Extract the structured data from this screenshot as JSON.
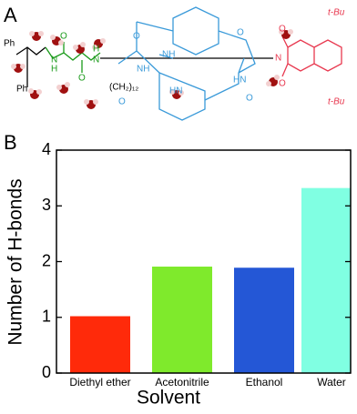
{
  "panels": {
    "a": "A",
    "b": "B"
  },
  "structure": {
    "labels": [
      "Ph",
      "Ph",
      "H",
      "N",
      "O",
      "O",
      "N",
      "H",
      "(CH₂)₁₂",
      "O",
      "NH",
      "HN",
      "O",
      "O",
      "NH",
      "HN",
      "O",
      "N",
      "O",
      "O",
      "t-Bu",
      "t-Bu"
    ]
  },
  "chart_data": {
    "type": "bar",
    "categories": [
      "Diethyl ether",
      "Acetonitrile",
      "Ethanol",
      "Water"
    ],
    "values": [
      1.02,
      1.91,
      1.89,
      3.32
    ],
    "colors": [
      "#ff2a0a",
      "#7fea2c",
      "#2457d6",
      "#80ffe2"
    ],
    "x_label": "Solvent",
    "y_label": "Number of H-bonds",
    "ylim": [
      0,
      4
    ],
    "yticks": [
      0,
      1,
      2,
      3,
      4
    ]
  }
}
